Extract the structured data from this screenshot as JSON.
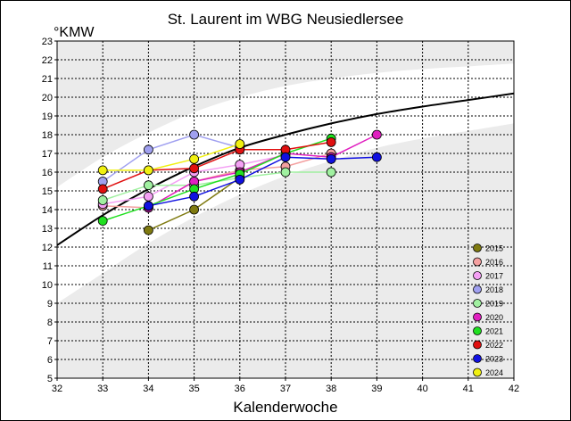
{
  "chart_data": {
    "type": "line",
    "title": "St. Laurent im WBG Neusiedlersee",
    "xlabel": "Kalenderwoche",
    "ylabel": "°KMW",
    "xlim": [
      32,
      42
    ],
    "ylim": [
      5,
      23
    ],
    "x_ticks": [
      "32",
      "33",
      "34",
      "35",
      "36",
      "37",
      "38",
      "39",
      "40",
      "41",
      "42"
    ],
    "y_ticks": [
      "5",
      "6",
      "7",
      "8",
      "9",
      "10",
      "11",
      "12",
      "13",
      "14",
      "15",
      "16",
      "17",
      "18",
      "19",
      "20",
      "21",
      "22",
      "23"
    ],
    "grid": true,
    "legend_position": "bottom-right",
    "reference_curve": {
      "x": [
        32,
        33,
        34,
        35,
        36,
        37,
        38,
        39,
        40,
        41,
        42
      ],
      "y": [
        12.1,
        13.7,
        15.1,
        16.3,
        17.3,
        18.0,
        18.6,
        19.1,
        19.5,
        19.85,
        20.2
      ],
      "color": "#000000"
    },
    "band_upper": {
      "x": [
        32,
        33,
        34,
        35,
        36,
        37,
        38,
        39,
        40,
        41,
        42
      ],
      "y": [
        15.2,
        16.8,
        18.1,
        19.2,
        20.0,
        20.6,
        21.0,
        21.3,
        21.5,
        21.65,
        21.8
      ]
    },
    "band_lower": {
      "x": [
        32,
        33,
        34,
        35,
        36,
        37,
        38,
        39,
        40,
        41,
        42
      ],
      "y": [
        9.0,
        10.6,
        12.2,
        13.6,
        14.8,
        15.8,
        16.6,
        17.3,
        17.8,
        18.2,
        18.6
      ]
    },
    "series": [
      {
        "name": "2015",
        "color": "#7f7a10",
        "x": [
          34,
          35,
          36
        ],
        "y": [
          12.9,
          14.0,
          15.7
        ]
      },
      {
        "name": "2016",
        "color": "#f4a0a0",
        "x": [
          33,
          34,
          35,
          36,
          37,
          38
        ],
        "y": [
          14.2,
          14.1,
          15.5,
          16.1,
          16.3,
          17.0
        ]
      },
      {
        "name": "2017",
        "color": "#f4a0f4",
        "x": [
          33,
          34,
          35,
          36,
          37
        ],
        "y": [
          14.3,
          14.7,
          16.0,
          16.4,
          16.9
        ]
      },
      {
        "name": "2018",
        "color": "#a0a0f0",
        "x": [
          33,
          34,
          35,
          36
        ],
        "y": [
          15.5,
          17.2,
          18.0,
          17.3
        ]
      },
      {
        "name": "2019",
        "color": "#a0f0a0",
        "x": [
          33,
          34,
          35,
          36,
          37,
          38
        ],
        "y": [
          14.5,
          15.3,
          15.3,
          15.7,
          16.0,
          16.0
        ]
      },
      {
        "name": "2020",
        "color": "#e020c0",
        "x": [
          34,
          35,
          36,
          37,
          38,
          39
        ],
        "y": [
          14.1,
          15.5,
          16.0,
          17.0,
          16.8,
          18.0
        ]
      },
      {
        "name": "2021",
        "color": "#20e020",
        "x": [
          33,
          34,
          35,
          36,
          37,
          38
        ],
        "y": [
          13.4,
          14.2,
          15.1,
          15.9,
          17.0,
          17.8
        ]
      },
      {
        "name": "2022",
        "color": "#e01010",
        "x": [
          33,
          34,
          35,
          36,
          37,
          38
        ],
        "y": [
          15.1,
          16.1,
          16.2,
          17.2,
          17.2,
          17.6
        ]
      },
      {
        "name": "2023",
        "color": "#1010e0",
        "x": [
          34,
          35,
          36,
          37,
          38,
          39
        ],
        "y": [
          14.2,
          14.7,
          15.6,
          16.8,
          16.7,
          16.8
        ]
      },
      {
        "name": "2024",
        "color": "#f0f010",
        "x": [
          33,
          34,
          35,
          36
        ],
        "y": [
          16.1,
          16.1,
          16.7,
          17.5
        ]
      }
    ]
  }
}
